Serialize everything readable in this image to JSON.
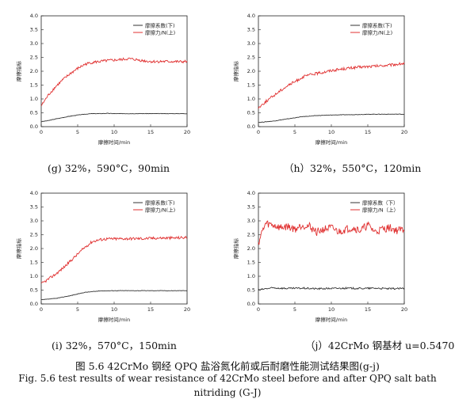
{
  "chart_data": [
    {
      "type": "line",
      "id": "g",
      "xlabel": "摩擦时间/min",
      "ylabel": "摩擦指标",
      "xlim": [
        0,
        20
      ],
      "ylim": [
        0,
        4.0
      ],
      "xticks": [
        0,
        5,
        10,
        15,
        20
      ],
      "yticks": [
        0.0,
        0.5,
        1.0,
        1.5,
        2.0,
        2.5,
        3.0,
        3.5,
        4.0
      ],
      "legend_position": "top-right",
      "series": [
        {
          "name": "摩擦系数(下)",
          "color": "#333333",
          "x": [
            0,
            1,
            2,
            3,
            4,
            5,
            6,
            7,
            8,
            9,
            10,
            12,
            14,
            16,
            18,
            20
          ],
          "y": [
            0.18,
            0.22,
            0.28,
            0.33,
            0.38,
            0.42,
            0.45,
            0.47,
            0.47,
            0.48,
            0.47,
            0.47,
            0.47,
            0.47,
            0.47,
            0.47
          ]
        },
        {
          "name": "摩擦力/N(上)",
          "color": "#e03030",
          "x": [
            0,
            0.5,
            1,
            2,
            3,
            4,
            5,
            6,
            7,
            8,
            9,
            10,
            11,
            12,
            13,
            14,
            15,
            16,
            17,
            18,
            19,
            20
          ],
          "y": [
            0.75,
            0.95,
            1.15,
            1.45,
            1.7,
            1.92,
            2.1,
            2.25,
            2.32,
            2.35,
            2.38,
            2.4,
            2.42,
            2.45,
            2.42,
            2.38,
            2.35,
            2.35,
            2.35,
            2.35,
            2.34,
            2.35
          ]
        }
      ],
      "caption": "(g) 32%，590°C，90min"
    },
    {
      "type": "line",
      "id": "h",
      "xlabel": "摩擦时间/min",
      "ylabel": "摩擦指标",
      "xlim": [
        0,
        20
      ],
      "ylim": [
        0,
        4.0
      ],
      "xticks": [
        0,
        5,
        10,
        15,
        20
      ],
      "yticks": [
        0.0,
        0.5,
        1.0,
        1.5,
        2.0,
        2.5,
        3.0,
        3.5,
        4.0
      ],
      "legend_position": "top-right",
      "series": [
        {
          "name": "摩擦系数(下)",
          "color": "#333333",
          "x": [
            0,
            2,
            4,
            6,
            8,
            10,
            12,
            14,
            16,
            18,
            20
          ],
          "y": [
            0.15,
            0.2,
            0.28,
            0.36,
            0.4,
            0.42,
            0.43,
            0.44,
            0.45,
            0.45,
            0.45
          ]
        },
        {
          "name": "摩擦力/N(上)",
          "color": "#e03030",
          "x": [
            0,
            1,
            2,
            3,
            4,
            5,
            6,
            7,
            8,
            9,
            10,
            12,
            14,
            16,
            18,
            20
          ],
          "y": [
            0.68,
            0.9,
            1.1,
            1.3,
            1.48,
            1.62,
            1.78,
            1.87,
            1.92,
            1.97,
            2.03,
            2.1,
            2.15,
            2.18,
            2.22,
            2.28
          ]
        }
      ],
      "caption": "（h）32%，550°C，120min"
    },
    {
      "type": "line",
      "id": "i",
      "xlabel": "摩擦时间/min",
      "ylabel": "摩擦指标",
      "xlim": [
        0,
        20
      ],
      "ylim": [
        0,
        4.0
      ],
      "xticks": [
        0,
        5,
        10,
        15,
        20
      ],
      "yticks": [
        0.0,
        0.5,
        1.0,
        1.5,
        2.0,
        2.5,
        3.0,
        3.5,
        4.0
      ],
      "legend_position": "top-right",
      "series": [
        {
          "name": "摩擦系数(下)",
          "color": "#333333",
          "x": [
            0,
            2,
            4,
            6,
            8,
            10,
            12,
            14,
            16,
            18,
            20
          ],
          "y": [
            0.15,
            0.2,
            0.3,
            0.42,
            0.47,
            0.48,
            0.48,
            0.48,
            0.48,
            0.48,
            0.48
          ]
        },
        {
          "name": "摩擦力/N(上)",
          "color": "#e03030",
          "x": [
            0,
            1,
            2,
            3,
            4,
            5,
            6,
            7,
            8,
            9,
            10,
            12,
            14,
            16,
            18,
            20
          ],
          "y": [
            0.72,
            0.9,
            1.08,
            1.3,
            1.55,
            1.8,
            2.05,
            2.25,
            2.32,
            2.35,
            2.35,
            2.36,
            2.36,
            2.38,
            2.38,
            2.4
          ]
        }
      ],
      "caption": "(i) 32%，570°C，150min"
    },
    {
      "type": "line",
      "id": "j",
      "xlabel": "摩擦时间/min",
      "ylabel": "摩擦指标",
      "xlim": [
        0,
        20
      ],
      "ylim": [
        0,
        4.0
      ],
      "xticks": [
        0,
        5,
        10,
        15,
        20
      ],
      "yticks": [
        0.0,
        0.5,
        1.0,
        1.5,
        2.0,
        2.5,
        3.0,
        3.5,
        4.0
      ],
      "legend_position": "top-right",
      "series": [
        {
          "name": "摩擦系数（下）",
          "color": "#333333",
          "x": [
            0,
            1,
            2,
            4,
            6,
            8,
            10,
            12,
            14,
            16,
            18,
            20
          ],
          "y": [
            0.5,
            0.55,
            0.58,
            0.56,
            0.57,
            0.55,
            0.56,
            0.57,
            0.56,
            0.57,
            0.55,
            0.56
          ]
        },
        {
          "name": "摩擦力/N（上）",
          "color": "#e03030",
          "x": [
            0,
            0.5,
            1,
            2,
            3,
            4,
            5,
            6,
            7,
            8,
            9,
            10,
            11,
            12,
            13,
            14,
            15,
            16,
            17,
            18,
            19,
            20
          ],
          "y": [
            2.2,
            2.6,
            2.9,
            2.85,
            2.75,
            2.8,
            2.7,
            2.85,
            2.8,
            2.6,
            2.7,
            2.75,
            2.6,
            2.7,
            2.75,
            2.65,
            2.85,
            2.6,
            2.7,
            2.75,
            2.65,
            2.7
          ]
        }
      ],
      "caption": "（j）42CrMo 钢基材 u=0.5470"
    }
  ],
  "figure": {
    "caption_cn": "图 5.6 42CrMo 钢经 QPQ 盐浴氮化前或后耐磨性能测试结果图(g-j)",
    "caption_en_line1": "Fig. 5.6 test results of wear resistance of 42CrMo steel before and after QPQ salt bath",
    "caption_en_line2": "nitriding (G-J)"
  }
}
